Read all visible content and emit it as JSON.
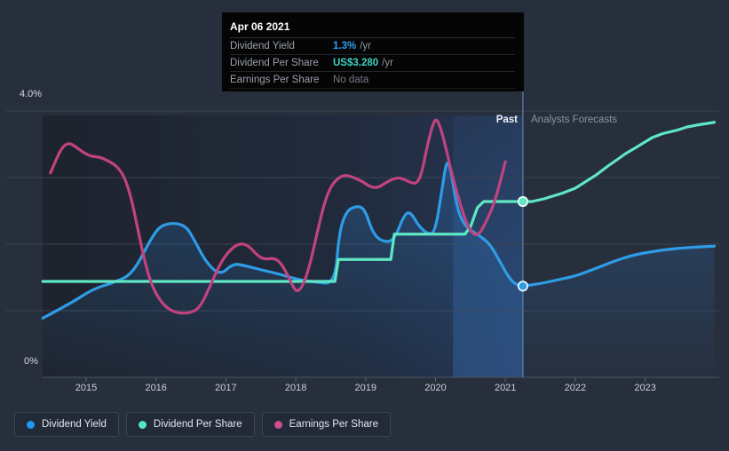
{
  "tooltip": {
    "title": "Apr 06 2021",
    "rows": [
      {
        "label": "Dividend Yield",
        "value": "1.3%",
        "suffix": "/yr",
        "value_color": "#2d9ff0"
      },
      {
        "label": "Dividend Per Share",
        "value": "US$3.280",
        "suffix": "/yr",
        "value_color": "#3fd4c2"
      },
      {
        "label": "Earnings Per Share",
        "value": "No data",
        "suffix": "",
        "value_color": "#757c85"
      }
    ]
  },
  "legend": {
    "items": [
      {
        "label": "Dividend Yield",
        "color": "#2196f3"
      },
      {
        "label": "Dividend Per Share",
        "color": "#52e6c4"
      },
      {
        "label": "Earnings Per Share",
        "color": "#ca4f92"
      }
    ]
  },
  "chart_data": {
    "type": "line",
    "past_label": "Past",
    "forecast_label": "Analysts Forecasts",
    "divider_x": 2021.25,
    "band": {
      "from": 2020.25,
      "to": 2021.25
    },
    "x_axis": {
      "ticks": [
        2015,
        2016,
        2017,
        2018,
        2019,
        2020,
        2021,
        2022,
        2023
      ],
      "start": 2014.38,
      "end": 2023.99
    },
    "y_axis": {
      "label_top": "4.0%",
      "label_bottom": "0%",
      "min": 0,
      "max": 4.0,
      "grid_values": [
        4,
        3,
        2,
        1
      ],
      "units": "percent (yield axis); DPS/EPS plotted in same axis units"
    },
    "series": [
      {
        "name": "Dividend Yield",
        "color": "#2e9ce6",
        "render": "smooth",
        "area": true,
        "marker": {
          "x": 2021.25,
          "y": 1.37,
          "fill": "#2e9ce6",
          "ring": "#e6f3fc"
        },
        "past": [
          [
            2014.38,
            0.89
          ],
          [
            2014.78,
            1.11
          ],
          [
            2015.1,
            1.33
          ],
          [
            2015.42,
            1.43
          ],
          [
            2015.67,
            1.56
          ],
          [
            2015.93,
            2.09
          ],
          [
            2016.09,
            2.31
          ],
          [
            2016.41,
            2.31
          ],
          [
            2016.56,
            2.04
          ],
          [
            2016.72,
            1.72
          ],
          [
            2016.92,
            1.53
          ],
          [
            2017.1,
            1.71
          ],
          [
            2017.26,
            1.68
          ],
          [
            2017.52,
            1.61
          ],
          [
            2017.77,
            1.55
          ],
          [
            2018.02,
            1.47
          ],
          [
            2018.28,
            1.43
          ],
          [
            2018.56,
            1.4
          ],
          [
            2018.62,
            2.17
          ],
          [
            2018.72,
            2.49
          ],
          [
            2018.85,
            2.57
          ],
          [
            2018.98,
            2.55
          ],
          [
            2019.1,
            2.17
          ],
          [
            2019.23,
            2.04
          ],
          [
            2019.4,
            2.04
          ],
          [
            2019.55,
            2.44
          ],
          [
            2019.64,
            2.49
          ],
          [
            2019.76,
            2.27
          ],
          [
            2019.89,
            2.15
          ],
          [
            2019.99,
            2.17
          ],
          [
            2020.08,
            2.73
          ],
          [
            2020.16,
            3.29
          ],
          [
            2020.22,
            3.11
          ],
          [
            2020.31,
            2.53
          ],
          [
            2020.41,
            2.29
          ],
          [
            2020.53,
            2.19
          ],
          [
            2020.65,
            2.11
          ],
          [
            2020.78,
            2.0
          ],
          [
            2020.91,
            1.76
          ],
          [
            2021.03,
            1.53
          ],
          [
            2021.13,
            1.4
          ],
          [
            2021.25,
            1.37
          ]
        ],
        "forecast": [
          [
            2021.25,
            1.37
          ],
          [
            2021.52,
            1.41
          ],
          [
            2021.77,
            1.47
          ],
          [
            2022.0,
            1.52
          ],
          [
            2022.28,
            1.63
          ],
          [
            2022.57,
            1.75
          ],
          [
            2022.81,
            1.83
          ],
          [
            2023.0,
            1.87
          ],
          [
            2023.3,
            1.92
          ],
          [
            2023.61,
            1.95
          ],
          [
            2023.99,
            1.97
          ]
        ]
      },
      {
        "name": "Dividend Per Share",
        "color": "#5fe7c4",
        "render": "linear",
        "area": false,
        "marker": {
          "x": 2021.25,
          "y": 2.64,
          "fill": "#5fe7c4",
          "ring": "#e4fbf4"
        },
        "past": [
          [
            2014.38,
            1.44
          ],
          [
            2018.56,
            1.44
          ],
          [
            2018.61,
            1.77
          ],
          [
            2019.36,
            1.77
          ],
          [
            2019.41,
            2.15
          ],
          [
            2020.42,
            2.15
          ],
          [
            2020.5,
            2.26
          ],
          [
            2020.6,
            2.55
          ],
          [
            2020.69,
            2.64
          ],
          [
            2021.25,
            2.64
          ]
        ],
        "forecast": [
          [
            2021.25,
            2.64
          ],
          [
            2021.38,
            2.64
          ],
          [
            2021.55,
            2.68
          ],
          [
            2021.8,
            2.76
          ],
          [
            2022.0,
            2.84
          ],
          [
            2022.15,
            2.94
          ],
          [
            2022.3,
            3.04
          ],
          [
            2022.45,
            3.16
          ],
          [
            2022.6,
            3.27
          ],
          [
            2022.72,
            3.36
          ],
          [
            2022.85,
            3.44
          ],
          [
            2023.1,
            3.6
          ],
          [
            2023.25,
            3.66
          ],
          [
            2023.45,
            3.71
          ],
          [
            2023.6,
            3.76
          ],
          [
            2023.75,
            3.79
          ],
          [
            2023.99,
            3.83
          ]
        ]
      },
      {
        "name": "Earnings Per Share",
        "color": "#c2437f",
        "render": "smooth",
        "area": false,
        "marker": null,
        "past": [
          [
            2014.49,
            3.07
          ],
          [
            2014.59,
            3.32
          ],
          [
            2014.67,
            3.47
          ],
          [
            2014.75,
            3.52
          ],
          [
            2014.83,
            3.48
          ],
          [
            2014.94,
            3.39
          ],
          [
            2015.06,
            3.32
          ],
          [
            2015.19,
            3.31
          ],
          [
            2015.32,
            3.25
          ],
          [
            2015.44,
            3.17
          ],
          [
            2015.55,
            3.01
          ],
          [
            2015.65,
            2.68
          ],
          [
            2015.75,
            2.17
          ],
          [
            2015.85,
            1.69
          ],
          [
            2015.95,
            1.35
          ],
          [
            2016.08,
            1.12
          ],
          [
            2016.21,
            1.0
          ],
          [
            2016.35,
            0.96
          ],
          [
            2016.5,
            0.97
          ],
          [
            2016.63,
            1.05
          ],
          [
            2016.77,
            1.36
          ],
          [
            2016.91,
            1.69
          ],
          [
            2017.03,
            1.88
          ],
          [
            2017.15,
            1.99
          ],
          [
            2017.25,
            2.01
          ],
          [
            2017.35,
            1.95
          ],
          [
            2017.45,
            1.83
          ],
          [
            2017.55,
            1.77
          ],
          [
            2017.67,
            1.79
          ],
          [
            2017.76,
            1.75
          ],
          [
            2017.86,
            1.59
          ],
          [
            2017.96,
            1.36
          ],
          [
            2018.02,
            1.28
          ],
          [
            2018.1,
            1.37
          ],
          [
            2018.19,
            1.64
          ],
          [
            2018.29,
            2.09
          ],
          [
            2018.39,
            2.55
          ],
          [
            2018.49,
            2.85
          ],
          [
            2018.6,
            2.99
          ],
          [
            2018.7,
            3.04
          ],
          [
            2018.81,
            3.01
          ],
          [
            2018.94,
            2.95
          ],
          [
            2019.05,
            2.87
          ],
          [
            2019.16,
            2.84
          ],
          [
            2019.27,
            2.91
          ],
          [
            2019.37,
            2.97
          ],
          [
            2019.47,
            3.0
          ],
          [
            2019.56,
            2.97
          ],
          [
            2019.65,
            2.92
          ],
          [
            2019.73,
            2.91
          ],
          [
            2019.8,
            3.05
          ],
          [
            2019.88,
            3.47
          ],
          [
            2019.96,
            3.8
          ],
          [
            2020.01,
            3.89
          ],
          [
            2020.07,
            3.76
          ],
          [
            2020.15,
            3.44
          ],
          [
            2020.24,
            3.03
          ],
          [
            2020.32,
            2.72
          ],
          [
            2020.41,
            2.41
          ],
          [
            2020.49,
            2.21
          ],
          [
            2020.57,
            2.13
          ],
          [
            2020.64,
            2.17
          ],
          [
            2020.73,
            2.35
          ],
          [
            2020.82,
            2.56
          ],
          [
            2020.9,
            2.83
          ],
          [
            2020.96,
            3.08
          ],
          [
            2021.0,
            3.24
          ]
        ],
        "forecast": null
      }
    ]
  }
}
